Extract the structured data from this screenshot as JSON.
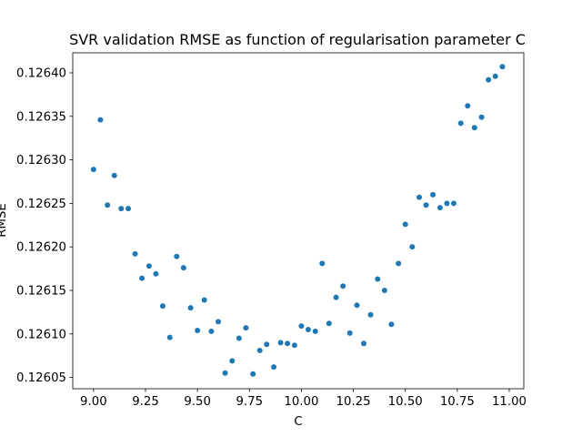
{
  "chart_data": {
    "type": "scatter",
    "title": "SVR validation RMSE as function of regularisation parameter C",
    "xlabel": "C",
    "ylabel": "RMSE",
    "xlim": [
      8.9,
      11.07
    ],
    "ylim": [
      0.126037,
      0.126423
    ],
    "xticks": [
      9.0,
      9.25,
      9.5,
      9.75,
      10.0,
      10.25,
      10.5,
      10.75,
      11.0
    ],
    "xtick_labels": [
      "9.00",
      "9.25",
      "9.50",
      "9.75",
      "10.00",
      "10.25",
      "10.50",
      "10.75",
      "11.00"
    ],
    "yticks": [
      0.12605,
      0.1261,
      0.12615,
      0.1262,
      0.12625,
      0.1263,
      0.12635,
      0.1264
    ],
    "ytick_labels": [
      "0.12605",
      "0.12610",
      "0.12615",
      "0.12620",
      "0.12625",
      "0.12630",
      "0.12635",
      "0.12640"
    ],
    "grid": false,
    "marker_color": "#1f77b4",
    "x": [
      9.0,
      9.033,
      9.067,
      9.1,
      9.133,
      9.167,
      9.2,
      9.233,
      9.267,
      9.3,
      9.333,
      9.367,
      9.4,
      9.433,
      9.467,
      9.5,
      9.533,
      9.567,
      9.6,
      9.633,
      9.667,
      9.7,
      9.733,
      9.767,
      9.8,
      9.833,
      9.867,
      9.9,
      9.933,
      9.967,
      10.0,
      10.033,
      10.067,
      10.1,
      10.133,
      10.167,
      10.2,
      10.233,
      10.267,
      10.3,
      10.333,
      10.367,
      10.4,
      10.433,
      10.467,
      10.5,
      10.533,
      10.567,
      10.6,
      10.633,
      10.667,
      10.7,
      10.733,
      10.767,
      10.8,
      10.833,
      10.867,
      10.9,
      10.933,
      10.967
    ],
    "y": [
      0.126289,
      0.126346,
      0.126248,
      0.126282,
      0.126244,
      0.126244,
      0.126192,
      0.126164,
      0.126178,
      0.126169,
      0.126132,
      0.126096,
      0.126189,
      0.126176,
      0.12613,
      0.126104,
      0.126139,
      0.126103,
      0.126114,
      0.126055,
      0.126069,
      0.126095,
      0.126107,
      0.126054,
      0.126081,
      0.126088,
      0.126062,
      0.12609,
      0.126089,
      0.126087,
      0.126109,
      0.126105,
      0.126103,
      0.126181,
      0.126112,
      0.126142,
      0.126155,
      0.126101,
      0.126133,
      0.126089,
      0.126122,
      0.126163,
      0.12615,
      0.126111,
      0.126181,
      0.126226,
      0.1262,
      0.126257,
      0.126248,
      0.12626,
      0.126245,
      0.12625,
      0.12625,
      0.126342,
      0.126362,
      0.126337,
      0.126349,
      0.126392,
      0.126396,
      0.126407
    ]
  }
}
